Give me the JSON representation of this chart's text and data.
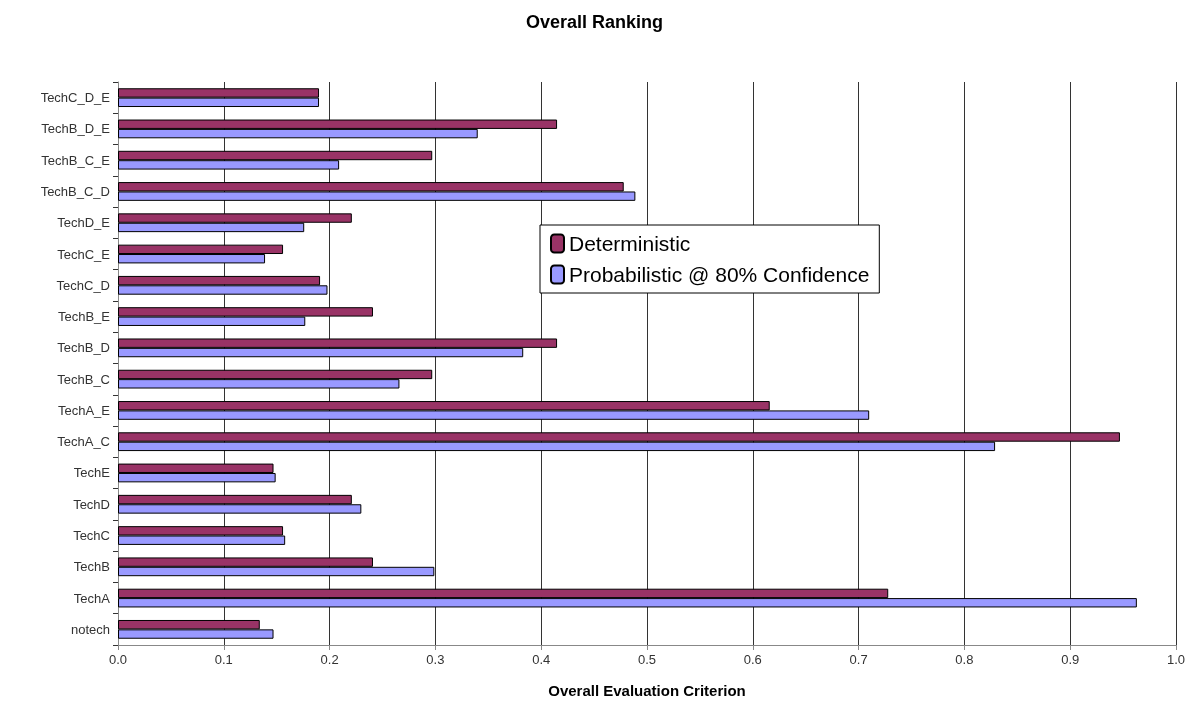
{
  "chart_data": {
    "type": "bar",
    "orientation": "horizontal",
    "title": "Overall Ranking",
    "xlabel": "Overall Evaluation Criterion",
    "categories": [
      "TechC_D_E",
      "TechB_D_E",
      "TechB_C_E",
      "TechB_C_D",
      "TechD_E",
      "TechC_E",
      "TechC_D",
      "TechB_E",
      "TechB_D",
      "TechB_C",
      "TechA_E",
      "TechA_C",
      "TechE",
      "TechD",
      "TechC",
      "TechB",
      "TechA",
      "notech"
    ],
    "series": [
      {
        "name": "Deterministic",
        "color": "#993366",
        "values": [
          0.19,
          0.415,
          0.297,
          0.478,
          0.221,
          0.156,
          0.191,
          0.241,
          0.415,
          0.297,
          0.616,
          0.947,
          0.147,
          0.221,
          0.156,
          0.241,
          0.728,
          0.134
        ]
      },
      {
        "name": "Probabilistic @ 80% Confidence",
        "color": "#9999ff",
        "values": [
          0.19,
          0.34,
          0.209,
          0.489,
          0.176,
          0.139,
          0.198,
          0.177,
          0.383,
          0.266,
          0.71,
          0.829,
          0.149,
          0.23,
          0.158,
          0.299,
          0.963,
          0.147
        ]
      }
    ],
    "xlim": [
      0,
      1
    ],
    "xticks": [
      {
        "value": 0,
        "label": "0.0"
      },
      0.1,
      0.2,
      0.3,
      0.4,
      0.5,
      0.6,
      0.7,
      0.8,
      0.9,
      {
        "value": 1,
        "label": "1.0"
      }
    ],
    "grid": "x",
    "legend": "right"
  }
}
